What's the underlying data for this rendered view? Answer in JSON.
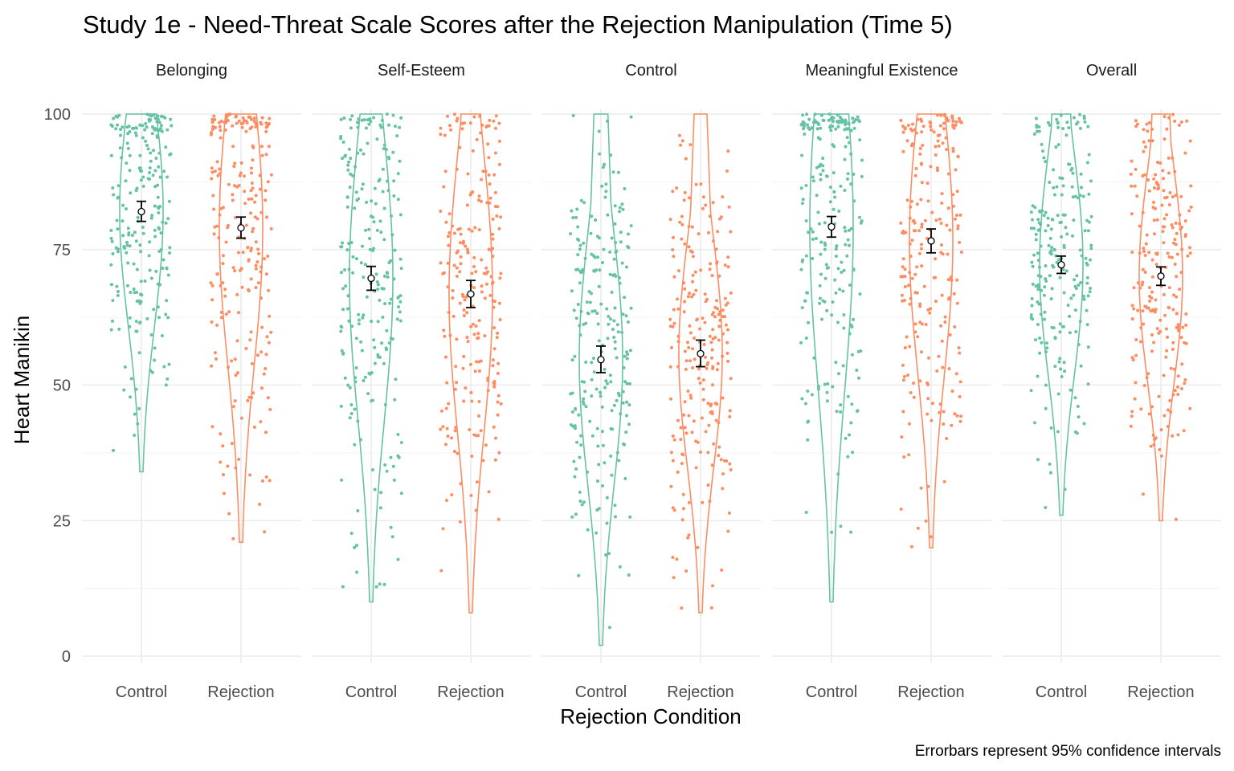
{
  "chart_data": {
    "type": "violin",
    "title": "Study 1e - Need-Threat Scale Scores after the Rejection Manipulation (Time 5)",
    "xlabel": "Rejection Condition",
    "ylabel": "Heart Manikin",
    "caption": "Errorbars represent 95% confidence intervals",
    "categories": [
      "Control",
      "Rejection"
    ],
    "ylim": [
      0,
      100
    ],
    "yticks": [
      0,
      25,
      50,
      75,
      100
    ],
    "grid": true,
    "legend": "none",
    "colors": {
      "Control": "#66c2a5",
      "Rejection": "#fc8d62"
    },
    "panels": [
      {
        "name": "Belonging",
        "groups": [
          {
            "condition": "Control",
            "mean": 82.0,
            "ci": [
              80.2,
              83.9
            ],
            "range": [
              34,
              100
            ]
          },
          {
            "condition": "Rejection",
            "mean": 79.0,
            "ci": [
              77.1,
              81.0
            ],
            "range": [
              21,
              100
            ]
          }
        ]
      },
      {
        "name": "Self-Esteem",
        "groups": [
          {
            "condition": "Control",
            "mean": 69.7,
            "ci": [
              67.5,
              71.9
            ],
            "range": [
              10,
              100
            ]
          },
          {
            "condition": "Rejection",
            "mean": 66.8,
            "ci": [
              64.3,
              69.3
            ],
            "range": [
              8,
              100
            ]
          }
        ]
      },
      {
        "name": "Control",
        "groups": [
          {
            "condition": "Control",
            "mean": 54.7,
            "ci": [
              52.3,
              57.2
            ],
            "range": [
              2,
              100
            ]
          },
          {
            "condition": "Rejection",
            "mean": 55.8,
            "ci": [
              53.4,
              58.3
            ],
            "range": [
              8,
              100
            ]
          }
        ]
      },
      {
        "name": "Meaningful Existence",
        "groups": [
          {
            "condition": "Control",
            "mean": 79.2,
            "ci": [
              77.3,
              81.1
            ],
            "range": [
              10,
              100
            ]
          },
          {
            "condition": "Rejection",
            "mean": 76.6,
            "ci": [
              74.4,
              78.8
            ],
            "range": [
              20,
              100
            ]
          }
        ]
      },
      {
        "name": "Overall",
        "groups": [
          {
            "condition": "Control",
            "mean": 72.2,
            "ci": [
              70.6,
              73.8
            ],
            "range": [
              26,
              100
            ]
          },
          {
            "condition": "Rejection",
            "mean": 70.1,
            "ci": [
              68.4,
              71.8
            ],
            "range": [
              25,
              100
            ]
          }
        ]
      }
    ]
  }
}
